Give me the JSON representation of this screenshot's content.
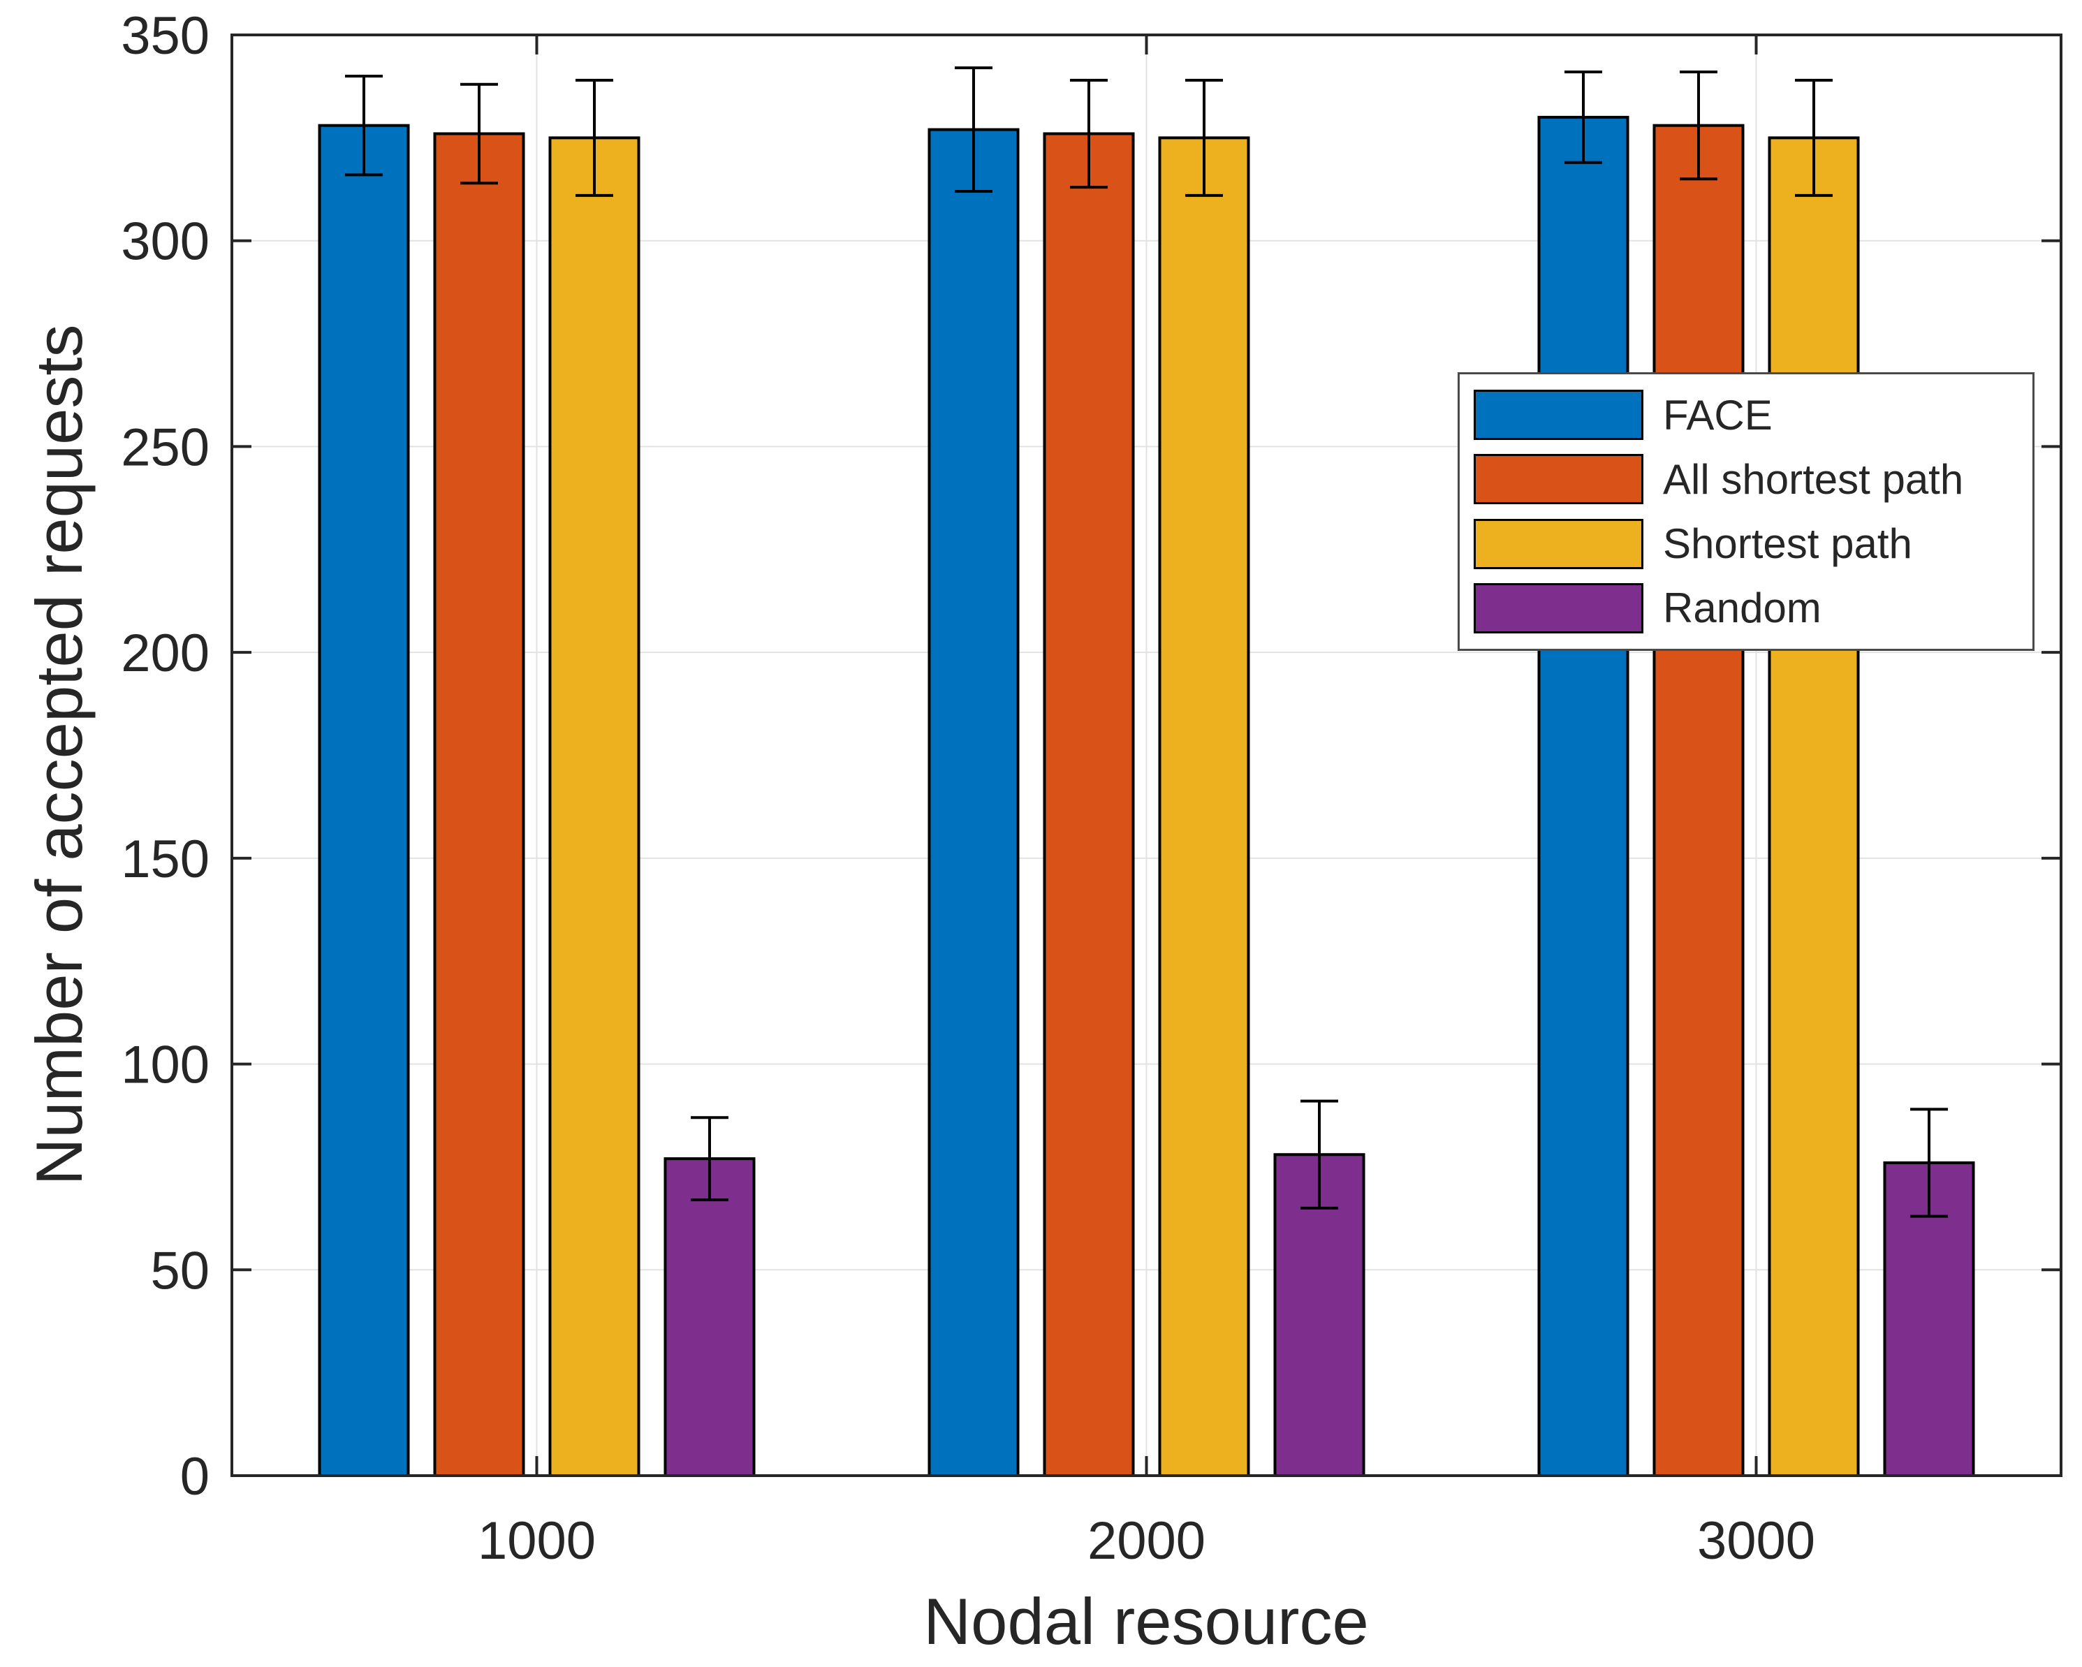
{
  "chart_data": {
    "type": "bar",
    "title": "",
    "xlabel": "Nodal resource",
    "ylabel": "Number of accepted requests",
    "categories": [
      "1000",
      "2000",
      "3000"
    ],
    "series": [
      {
        "name": "FACE",
        "color": "#0072BD",
        "values": [
          328,
          327,
          330
        ],
        "errors": [
          12,
          15,
          11
        ]
      },
      {
        "name": "All shortest path",
        "color": "#D95319",
        "values": [
          326,
          326,
          328
        ],
        "errors": [
          12,
          13,
          13
        ]
      },
      {
        "name": "Shortest path",
        "color": "#EDB120",
        "values": [
          325,
          325,
          325
        ],
        "errors": [
          14,
          14,
          14
        ]
      },
      {
        "name": "Random",
        "color": "#7E2F8E",
        "values": [
          77,
          78,
          76
        ],
        "errors": [
          10,
          13,
          13
        ]
      }
    ],
    "ylim": [
      0,
      350
    ],
    "ytick_step": 50,
    "yticks": [
      "0",
      "50",
      "100",
      "150",
      "200",
      "250",
      "300",
      "350"
    ],
    "grid": true,
    "legend_position": "upper right inside",
    "error_bars": true
  },
  "colors": {
    "axis": "#262626",
    "grid": "#E2E2E2",
    "bar_edge": "#000000",
    "error_bar": "#000000",
    "background": "#FFFFFF"
  }
}
